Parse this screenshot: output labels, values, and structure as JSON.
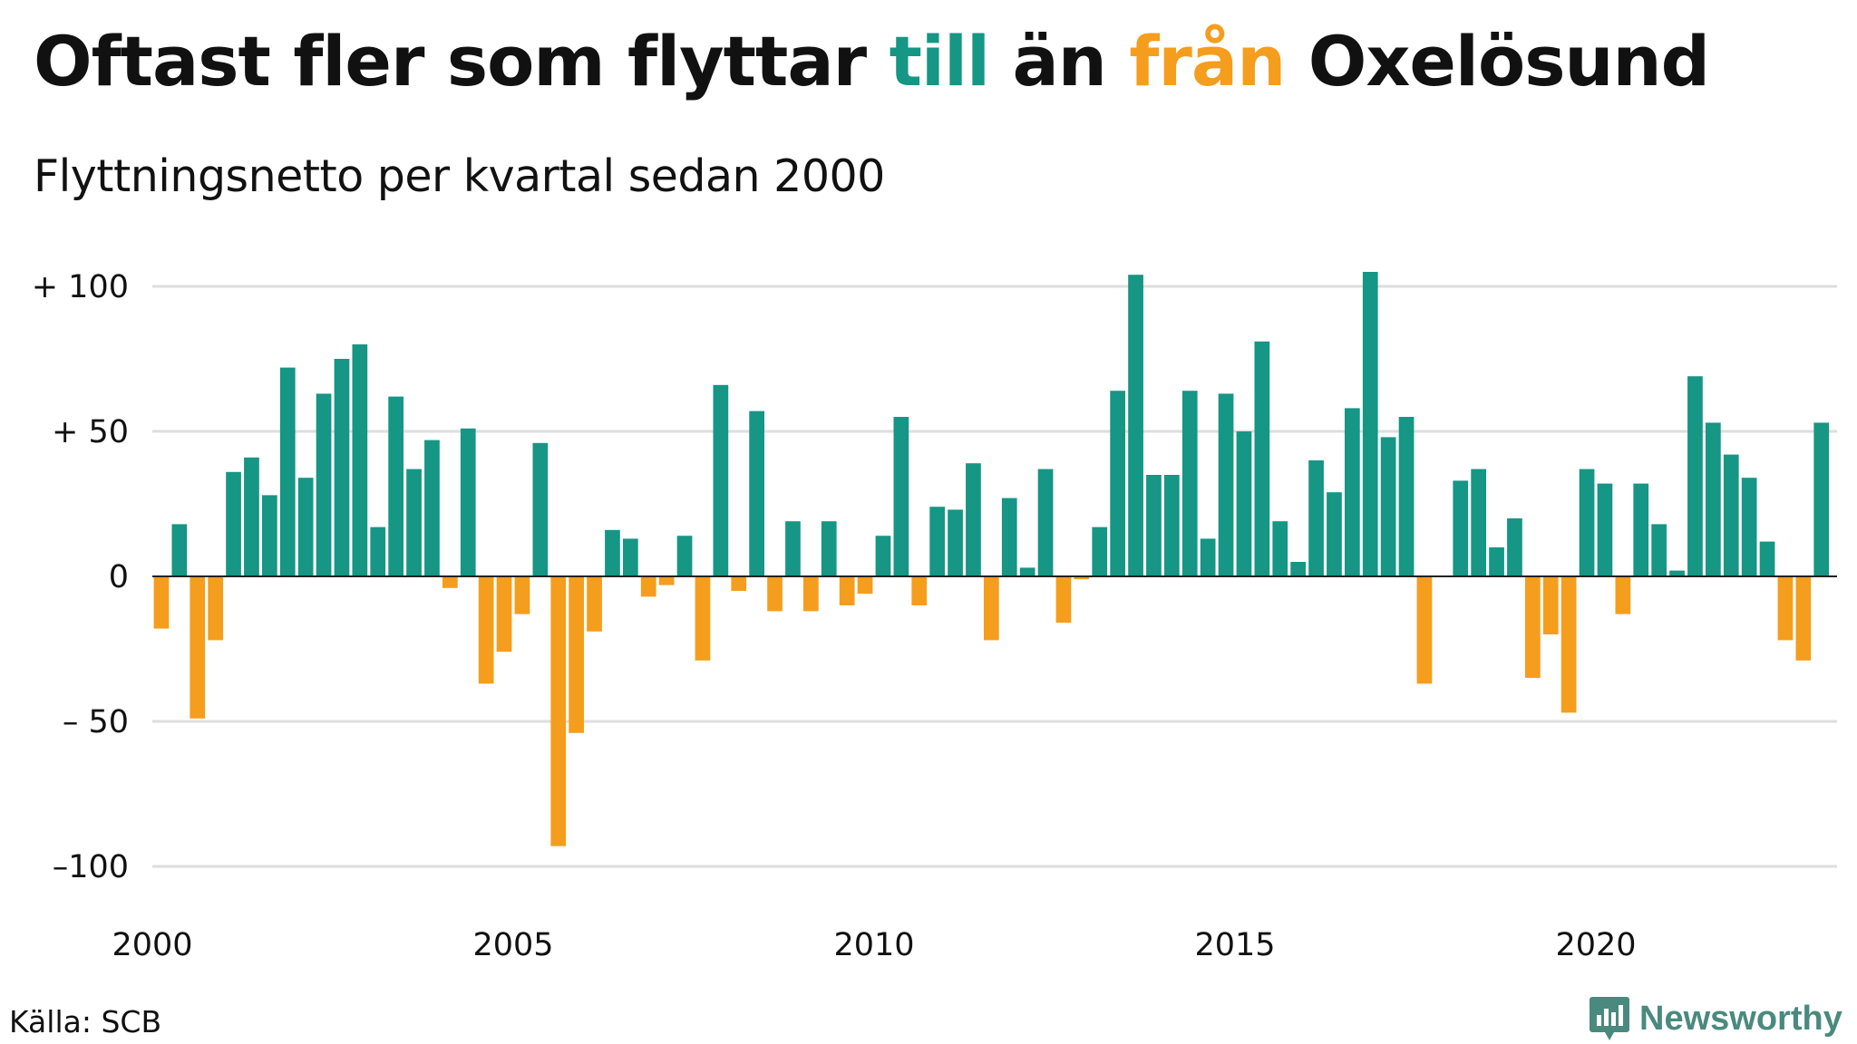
{
  "title": {
    "part1": "Oftast fler som flyttar ",
    "part2": "till",
    "part3": " än ",
    "part4": "från",
    "part5": " Oxelösund"
  },
  "subtitle": "Flyttningsnetto per kvartal sedan 2000",
  "source": "Källa: SCB",
  "logo": {
    "text": "Newsworthy",
    "icon": "newsworthy-logo-icon"
  },
  "colors": {
    "positive": "#169684",
    "negative": "#f59d1d",
    "title_accent_positive": "#169684",
    "title_accent_negative": "#f59d1d",
    "grid": "#dedede",
    "zero_line": "#222222",
    "logo": "#4a8a7e"
  },
  "chart_data": {
    "type": "bar",
    "title": "Oftast fler som flyttar till än från Oxelösund",
    "subtitle": "Flyttningsnetto per kvartal sedan 2000",
    "xlabel": "",
    "ylabel": "",
    "x_start_year": 2000,
    "periods_per_year": 4,
    "xlim": [
      2000,
      2023.5
    ],
    "ylim": [
      -110,
      110
    ],
    "grid": true,
    "yticks": [
      {
        "value": 100,
        "label": "+ 100"
      },
      {
        "value": 50,
        "label": "+  50"
      },
      {
        "value": 0,
        "label": "0"
      },
      {
        "value": -50,
        "label": "– 50"
      },
      {
        "value": -100,
        "label": "–100"
      }
    ],
    "xticks": [
      {
        "value": 2000,
        "label": "2000"
      },
      {
        "value": 2005,
        "label": "2005"
      },
      {
        "value": 2010,
        "label": "2010"
      },
      {
        "value": 2015,
        "label": "2015"
      },
      {
        "value": 2020,
        "label": "2020"
      }
    ],
    "values": [
      -18,
      18,
      -49,
      -22,
      36,
      41,
      28,
      72,
      34,
      63,
      75,
      80,
      17,
      62,
      37,
      47,
      -4,
      51,
      -37,
      -26,
      -13,
      46,
      -93,
      -54,
      -19,
      16,
      13,
      -7,
      -3,
      14,
      -29,
      66,
      -5,
      57,
      -12,
      19,
      -12,
      19,
      -10,
      -6,
      14,
      55,
      -10,
      24,
      23,
      39,
      -22,
      27,
      3,
      37,
      -16,
      -1,
      17,
      64,
      104,
      35,
      35,
      64,
      13,
      63,
      50,
      81,
      19,
      5,
      40,
      29,
      58,
      105,
      48,
      55,
      -37,
      0,
      33,
      37,
      10,
      20,
      -35,
      -20,
      -47,
      37,
      32,
      -13,
      32,
      18,
      2,
      69,
      53,
      42,
      34,
      12,
      -22,
      -29,
      53
    ]
  }
}
